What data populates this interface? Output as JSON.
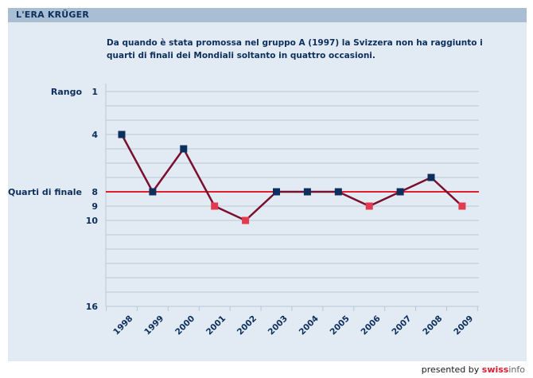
{
  "header": {
    "title": "L'ERA KRÜGER"
  },
  "subtitle_lines": [
    "Da quando è stata promossa nel gruppo A (1997) la Svizzera non ha raggiunto i",
    "quarti di finali dei Mondiali soltanto in quattro occasioni."
  ],
  "footer": {
    "prefix": "presented by ",
    "brand_swiss": "swiss",
    "brand_info": "info"
  },
  "colors": {
    "line": "#7a0f2e",
    "reached": "#0d2f5e",
    "not_reached": "#e23a4f",
    "threshold": "#e0202c",
    "grid": "#b9c8d8",
    "text": "#0d2f5e"
  },
  "chart_data": {
    "type": "line",
    "title": "L'ERA KRÜGER",
    "xlabel": "",
    "ylabel": "Rango",
    "y_inverted": true,
    "ylim": [
      1,
      16
    ],
    "y_tick_labels": [
      {
        "value": 1,
        "label": "1"
      },
      {
        "value": 4,
        "label": "4"
      },
      {
        "value": 8,
        "label": "8"
      },
      {
        "value": 9,
        "label": "9"
      },
      {
        "value": 10,
        "label": "10"
      },
      {
        "value": 16,
        "label": "16"
      }
    ],
    "reference_line": {
      "value": 8,
      "label": "Quarti di finale"
    },
    "categories": [
      "1998",
      "1999",
      "2000",
      "2001",
      "2002",
      "2003",
      "2004",
      "2005",
      "2006",
      "2007",
      "2008",
      "2009"
    ],
    "values": [
      4,
      8,
      5,
      9,
      10,
      8,
      8,
      8,
      9,
      8,
      7,
      9
    ],
    "reached_quarterfinals": [
      true,
      true,
      true,
      false,
      false,
      true,
      true,
      true,
      false,
      true,
      true,
      false
    ],
    "grid": true
  }
}
